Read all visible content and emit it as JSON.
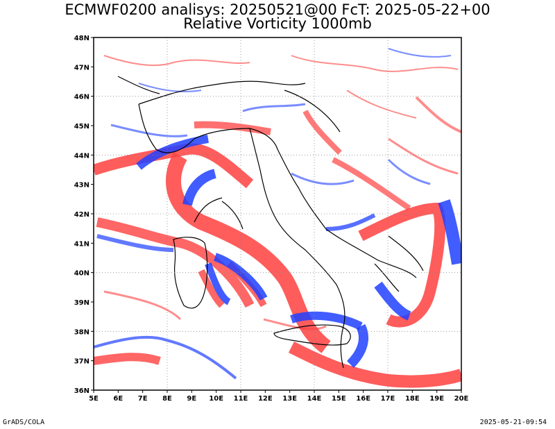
{
  "header": {
    "title_line1": "ECMWF0200 analisys: 20250521@00 FcT: 2025-05-22+00",
    "title_line2": "Relative Vorticity 1000mb"
  },
  "map": {
    "lat_labels": [
      "36N",
      "37N",
      "38N",
      "39N",
      "40N",
      "41N",
      "42N",
      "43N",
      "44N",
      "45N",
      "46N",
      "47N",
      "48N"
    ],
    "lon_labels": [
      "5E",
      "6E",
      "7E",
      "8E",
      "9E",
      "10E",
      "11E",
      "12E",
      "13E",
      "14E",
      "15E",
      "16E",
      "17E",
      "18E",
      "19E",
      "20E"
    ],
    "lat_range": [
      36,
      48
    ],
    "lon_range": [
      5,
      20
    ],
    "colors": {
      "positive": "#ff4040",
      "negative": "#2040ff",
      "border": "#000000",
      "grid": "#888888"
    }
  },
  "footer": {
    "left": "GrADS/COLA",
    "right": "2025-05-21-09:54"
  }
}
